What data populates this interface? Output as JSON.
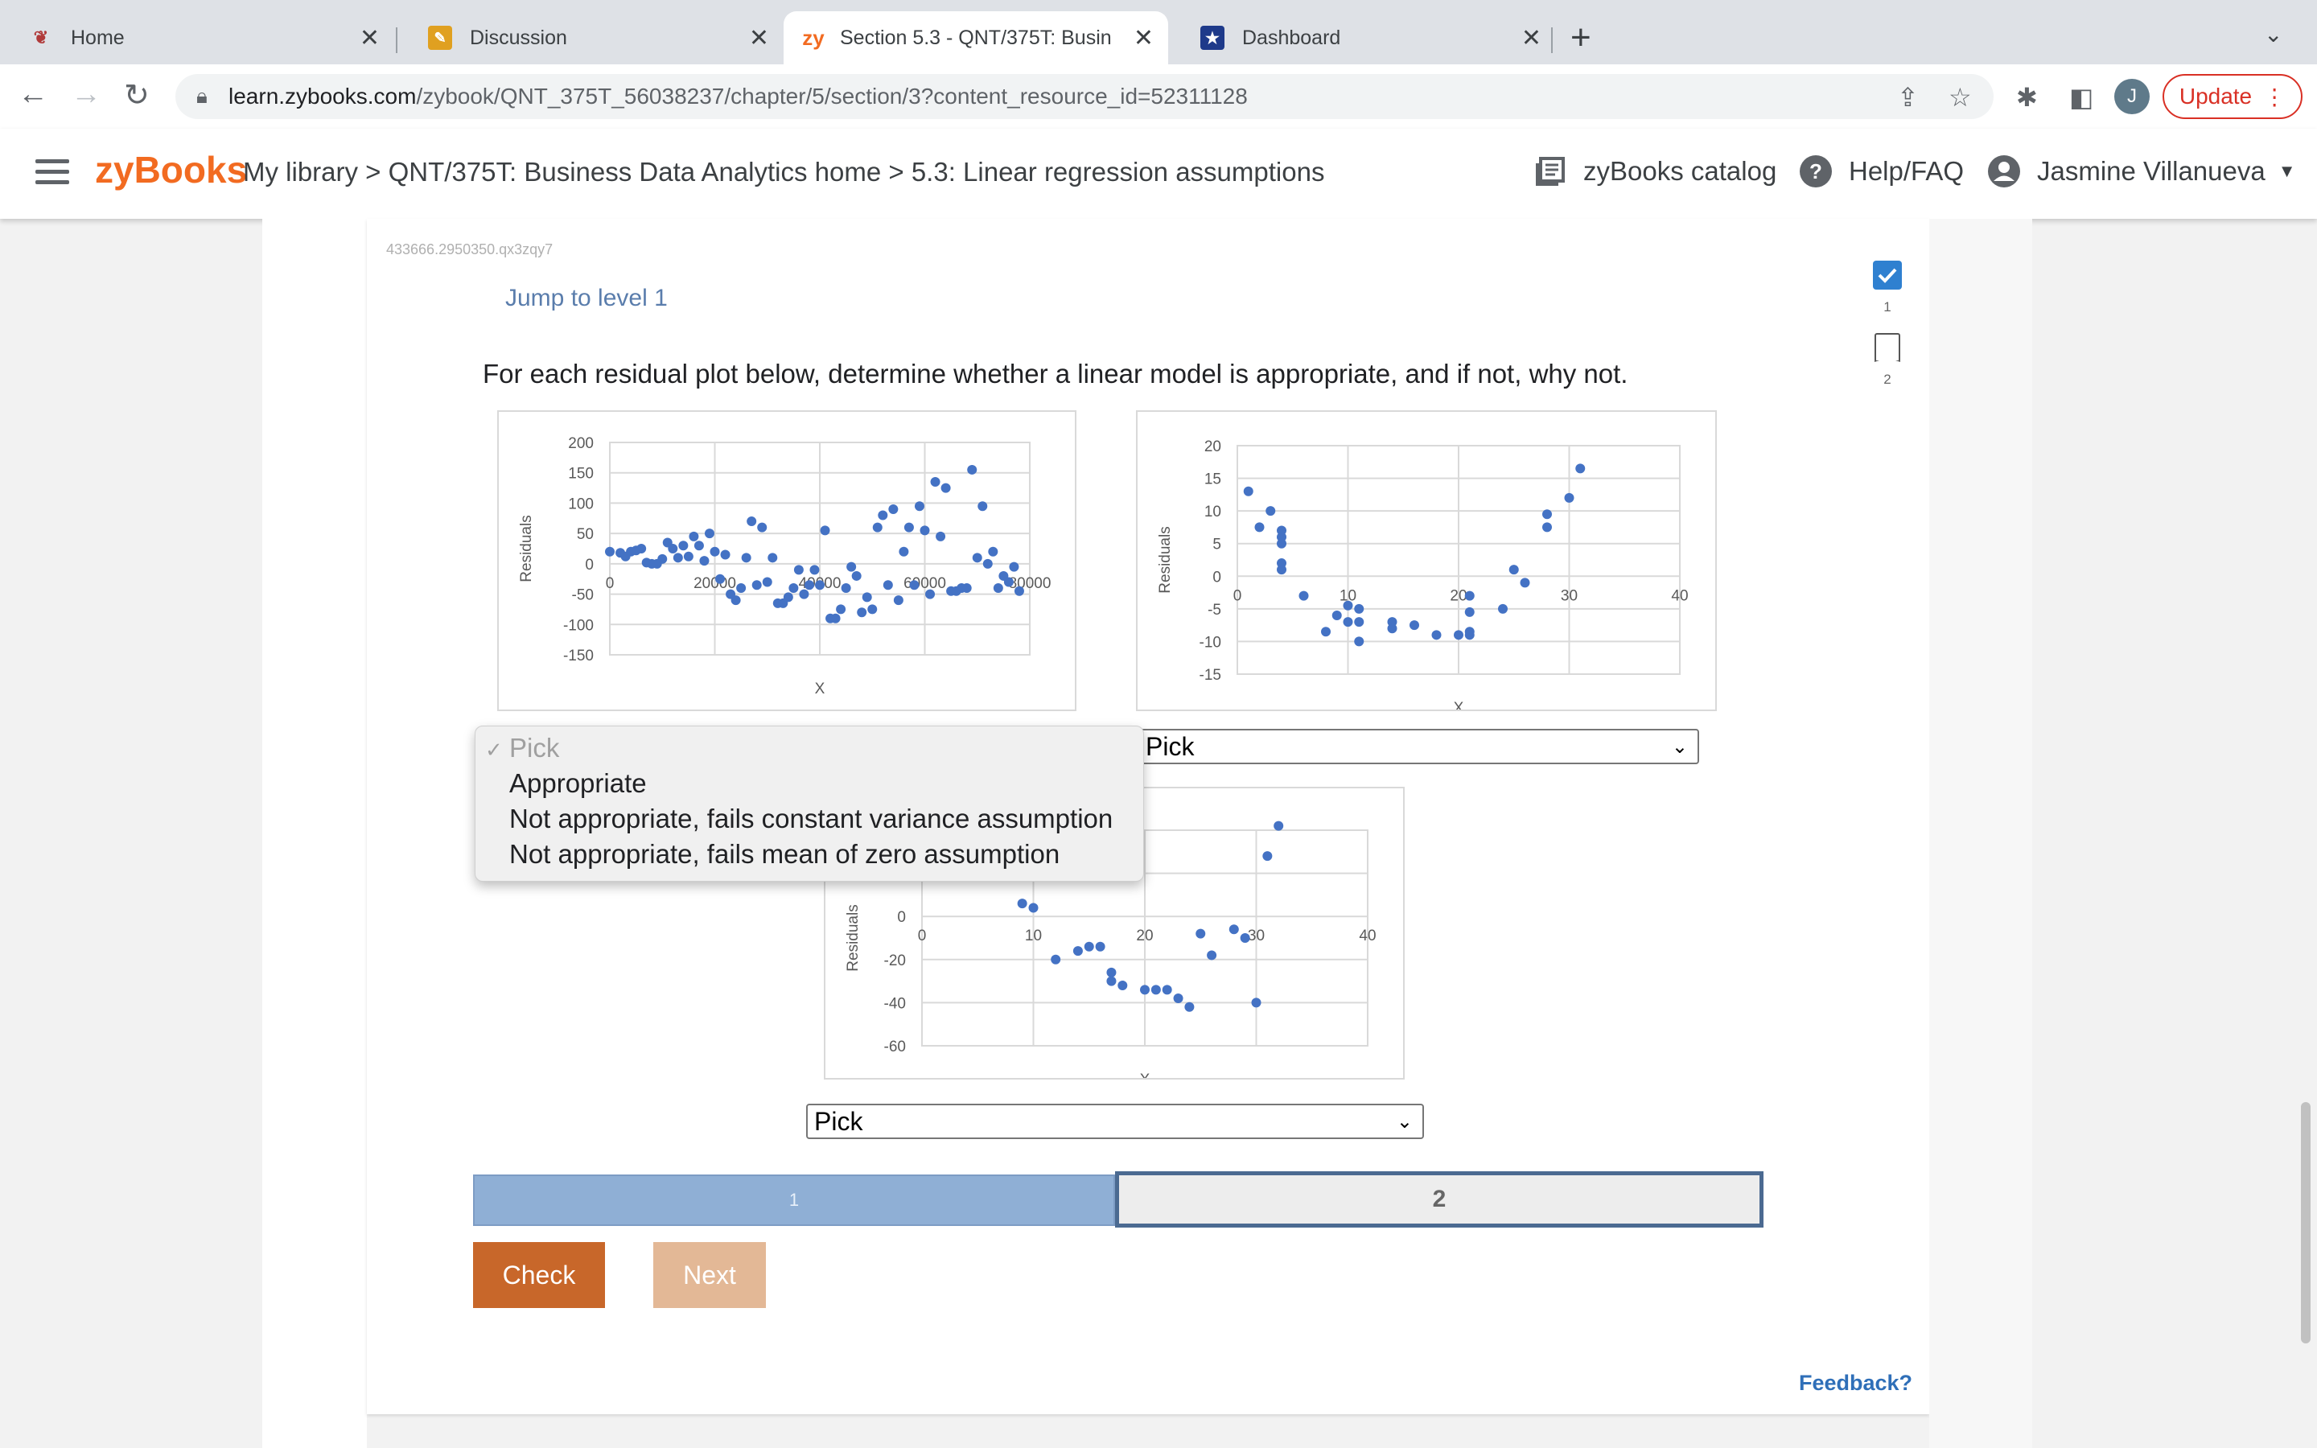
{
  "browser": {
    "tabs": [
      {
        "title": "Home",
        "icon": "phoenix-logo-icon"
      },
      {
        "title": "Discussion",
        "icon": "pencil-note-icon"
      },
      {
        "title": "Section 5.3 - QNT/375T: Busin",
        "icon": "zybooks-zy-icon",
        "active": true,
        "icon_text": "zy"
      },
      {
        "title": "Dashboard",
        "icon": "star-badge-icon"
      }
    ],
    "url_host": "learn.zybooks.com",
    "url_path": "/zybook/QNT_375T_56038237/chapter/5/section/3?content_resource_id=52311128",
    "profile_initial": "J",
    "update_label": "Update"
  },
  "header": {
    "logo": "zyBooks",
    "breadcrumb": "My library > QNT/375T: Business Data Analytics home > 5.3: Linear regression assumptions",
    "catalog": "zyBooks catalog",
    "help": "Help/FAQ",
    "user": "Jasmine Villanueva"
  },
  "activity": {
    "id": "433666.2950350.qx3zqy7",
    "jump_label": "Jump to level 1",
    "prompt": "For each residual plot below, determine whether a linear model is appropriate, and if not, why not.",
    "levels_side": [
      "1",
      "2"
    ],
    "level_bar": [
      "1",
      "2"
    ],
    "check_label": "Check",
    "next_label": "Next",
    "feedback_label": "Feedback?",
    "dropdown_options": [
      "Pick",
      "Appropriate",
      "Not appropriate, fails constant variance assumption",
      "Not appropriate, fails mean of zero assumption"
    ],
    "select_values": [
      "Pick",
      "Pick",
      "Pick"
    ]
  },
  "chart_data": [
    {
      "type": "scatter",
      "ylabel": "Residuals",
      "xlabel": "X",
      "xlim": [
        0,
        80000
      ],
      "ylim": [
        -150,
        200
      ],
      "x_ticks": [
        "0",
        "20000",
        "40000",
        "60000",
        "80000"
      ],
      "y_ticks": [
        "200",
        "150",
        "100",
        "50",
        "0",
        "-50",
        "-100",
        "-150"
      ],
      "x": [
        0,
        2000,
        3000,
        4000,
        5000,
        6000,
        7000,
        8000,
        9000,
        10000,
        11000,
        12000,
        13000,
        14000,
        15000,
        16000,
        17000,
        18000,
        19000,
        20000,
        21000,
        22000,
        23000,
        24000,
        25000,
        26000,
        27000,
        28000,
        29000,
        30000,
        31000,
        32000,
        33000,
        34000,
        35000,
        36000,
        37000,
        38000,
        39000,
        40000,
        41000,
        42000,
        43000,
        44000,
        45000,
        46000,
        47000,
        48000,
        49000,
        50000,
        51000,
        52000,
        53000,
        54000,
        55000,
        56000,
        57000,
        58000,
        59000,
        60000,
        61000,
        62000,
        63000,
        64000,
        65000,
        66000,
        67000,
        68000,
        69000,
        70000,
        71000,
        72000,
        73000,
        74000,
        75000,
        76000,
        77000,
        78000
      ],
      "y": [
        20,
        18,
        12,
        20,
        22,
        25,
        2,
        0,
        0,
        8,
        35,
        25,
        10,
        30,
        12,
        45,
        30,
        5,
        50,
        20,
        -25,
        15,
        -50,
        -60,
        -40,
        10,
        70,
        -35,
        60,
        -30,
        10,
        -65,
        -65,
        -55,
        -40,
        -10,
        -50,
        -35,
        -10,
        -35,
        55,
        -90,
        -90,
        -75,
        -40,
        -5,
        -20,
        -80,
        -55,
        -75,
        60,
        80,
        -35,
        90,
        -60,
        20,
        60,
        -35,
        95,
        55,
        -50,
        135,
        45,
        125,
        -45,
        -45,
        -40,
        -40,
        155,
        10,
        95,
        0,
        20,
        -40,
        -20,
        -30,
        -5,
        -45
      ]
    },
    {
      "type": "scatter",
      "ylabel": "Residuals",
      "xlabel": "X",
      "xlim": [
        0,
        40
      ],
      "ylim": [
        -15,
        20
      ],
      "x_ticks": [
        "0",
        "10",
        "20",
        "30",
        "40"
      ],
      "y_ticks": [
        "20",
        "15",
        "10",
        "5",
        "0",
        "-5",
        "-10",
        "-15"
      ],
      "x": [
        1,
        2,
        3,
        4,
        4,
        4,
        4,
        4,
        6,
        8,
        9,
        10,
        10,
        11,
        11,
        11,
        14,
        14,
        16,
        18,
        20,
        21,
        21,
        21,
        21,
        24,
        25,
        26,
        28,
        28,
        30,
        31
      ],
      "y": [
        13,
        7.5,
        10,
        7,
        6,
        5,
        2,
        1,
        -3,
        -8.5,
        -6,
        -4.5,
        -7,
        -5,
        -7,
        -10,
        -7,
        -8,
        -7.5,
        -9,
        -9,
        -3,
        -5.5,
        -9,
        -8.5,
        -5,
        1,
        -1,
        9.5,
        7.5,
        12,
        16.5
      ]
    },
    {
      "type": "scatter",
      "ylabel": "Residuals",
      "xlabel": "X",
      "xlim": [
        0,
        40
      ],
      "ylim": [
        -60,
        40
      ],
      "x_ticks": [
        "0",
        "10",
        "20",
        "30",
        "40"
      ],
      "y_ticks": [
        "40",
        "20",
        "0",
        "-20",
        "-40",
        "-60"
      ],
      "x": [
        7,
        6,
        8,
        9,
        10,
        11,
        12,
        14,
        15,
        16,
        17,
        17,
        18,
        20,
        21,
        22,
        23,
        24,
        25,
        26,
        28,
        29,
        30,
        31,
        32
      ],
      "y": [
        48,
        34,
        26,
        6,
        4,
        24,
        -20,
        -16,
        -14,
        -14,
        -26,
        -30,
        -32,
        -34,
        -34,
        -34,
        -38,
        -42,
        -8,
        -18,
        -6,
        -10,
        -40,
        28,
        42
      ]
    }
  ]
}
